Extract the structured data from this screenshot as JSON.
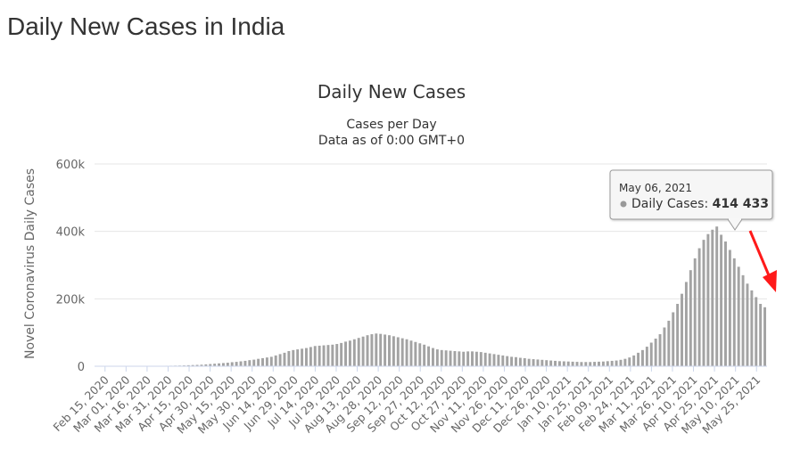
{
  "page": {
    "heading": "Daily New Cases in India"
  },
  "colors": {
    "bar": "#a3a3a3",
    "grid": "#e6e6e6",
    "text": "#333333",
    "axis_text": "#666666",
    "annotation_arrow": "#ff1a1a",
    "tooltip_marker": "#999999"
  },
  "chart_data": {
    "type": "bar",
    "title": "Daily New Cases",
    "subtitle": [
      "Cases per Day",
      "Data as of 0:00 GMT+0"
    ],
    "xlabel": "",
    "ylabel": "Novel Coronavirus Daily Cases",
    "ylim": [
      0,
      600000
    ],
    "yticks": [
      0,
      200000,
      400000,
      600000
    ],
    "ytick_labels": [
      "0",
      "200k",
      "400k",
      "600k"
    ],
    "xtick_labels": [
      "Feb 15, 2020",
      "Mar 01, 2020",
      "Mar 16, 2020",
      "Mar 31, 2020",
      "Apr 15, 2020",
      "Apr 30, 2020",
      "May 15, 2020",
      "May 30, 2020",
      "Jun 14, 2020",
      "Jun 29, 2020",
      "Jul 14, 2020",
      "Jul 29, 2020",
      "Aug 13, 2020",
      "Aug 28, 2020",
      "Sep 12, 2020",
      "Sep 27, 2020",
      "Oct 12, 2020",
      "Oct 27, 2020",
      "Nov 11, 2020",
      "Nov 26, 2020",
      "Dec 11, 2020",
      "Dec 26, 2020",
      "Jan 10, 2021",
      "Jan 25, 2021",
      "Feb 09, 2021",
      "Feb 24, 2021",
      "Mar 11, 2021",
      "Mar 26, 2021",
      "Apr 10, 2021",
      "Apr 25, 2021",
      "May 10, 2021",
      "May 25, 2021"
    ],
    "grid": true,
    "legend": "none",
    "series": [
      {
        "date_start": "2020-02-15",
        "interval_days": 3,
        "values": [
          0,
          0,
          0,
          0,
          0,
          0,
          0,
          0,
          0,
          50,
          150,
          250,
          400,
          600,
          900,
          1200,
          1400,
          1500,
          1800,
          2000,
          2400,
          3000,
          3500,
          4000,
          4500,
          5500,
          6500,
          7500,
          8500,
          9500,
          10500,
          12000,
          13000,
          14500,
          16000,
          18000,
          19500,
          22000,
          24000,
          26000,
          28000,
          32000,
          36000,
          40000,
          45000,
          48000,
          50000,
          52000,
          54000,
          57000,
          60000,
          61000,
          62000,
          63000,
          64000,
          66000,
          69000,
          73000,
          76000,
          80000,
          84000,
          88000,
          92000,
          95000,
          97000,
          96000,
          94000,
          92000,
          89000,
          86000,
          83000,
          80000,
          76000,
          72000,
          68000,
          64000,
          59000,
          54000,
          50000,
          48000,
          47000,
          46000,
          45000,
          44000,
          43000,
          44000,
          44000,
          43000,
          42000,
          40000,
          38000,
          36000,
          34000,
          32000,
          30000,
          28000,
          27000,
          25000,
          24000,
          22000,
          21000,
          20000,
          19000,
          18000,
          17000,
          16000,
          15000,
          14500,
          14000,
          13500,
          13000,
          12500,
          12500,
          12500,
          13000,
          13500,
          14000,
          15000,
          16000,
          17000,
          19000,
          22000,
          26000,
          32000,
          40000,
          48000,
          58000,
          70000,
          82000,
          95000,
          115000,
          135000,
          160000,
          185000,
          215000,
          250000,
          285000,
          320000,
          350000,
          375000,
          392000,
          405000,
          414433,
          390000,
          370000,
          345000,
          320000,
          295000,
          270000,
          245000,
          225000,
          205000,
          185000,
          175000
        ]
      }
    ],
    "tooltip": {
      "date": "May 06, 2021",
      "series_label": "Daily Cases",
      "value_text": "414 433",
      "value": 414433
    }
  }
}
